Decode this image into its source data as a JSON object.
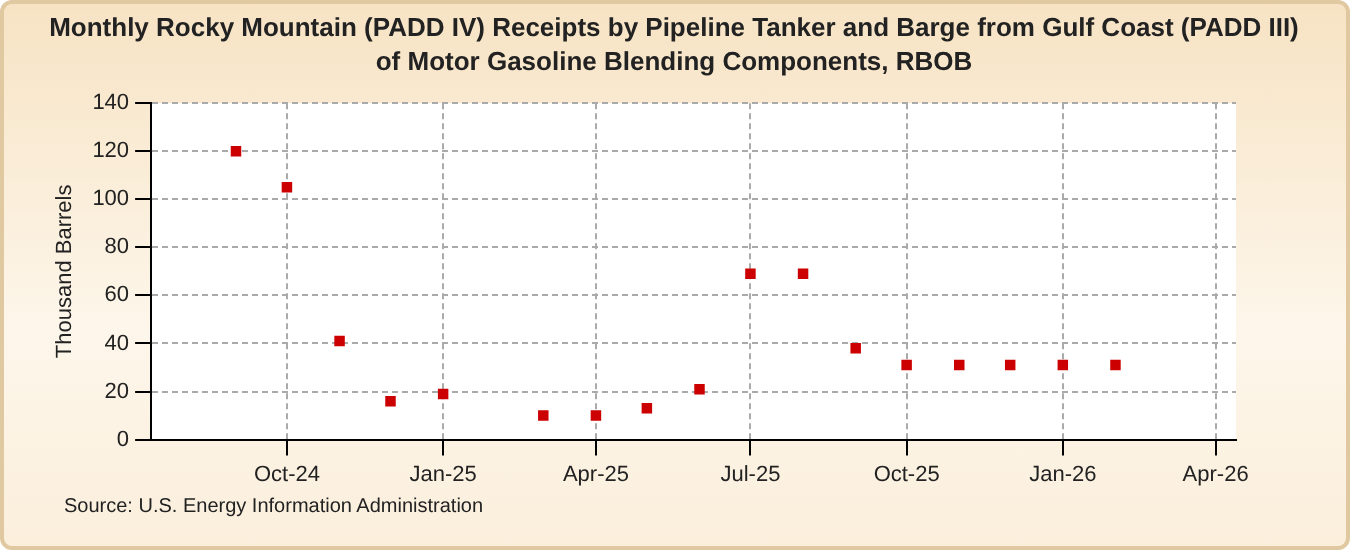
{
  "chart_data": {
    "type": "scatter",
    "title": "Monthly Rocky Mountain (PADD IV) Receipts by Pipeline Tanker and Barge from  Gulf Coast (PADD III) of Motor Gasoline Blending Components, RBOB",
    "ylabel": "Thousand Barrels",
    "x": [
      "2024-09",
      "2024-10",
      "2024-11",
      "2024-12",
      "2025-01",
      "2025-03",
      "2025-04",
      "2025-05",
      "2025-06",
      "2025-07",
      "2025-08",
      "2025-09",
      "2025-10",
      "2025-11",
      "2025-12",
      "2026-01",
      "2026-02"
    ],
    "series": [
      {
        "color": "#cc0000",
        "values": [
          120,
          105,
          41,
          16,
          19,
          10,
          10,
          13,
          21,
          69,
          69,
          38,
          31,
          31,
          31,
          31,
          31
        ]
      }
    ],
    "xlim": [
      "2024-07-13",
      "2026-04-13"
    ],
    "xticks": [
      {
        "value": "2024-10",
        "label": "Oct-24"
      },
      {
        "value": "2025-01",
        "label": "Jan-25"
      },
      {
        "value": "2025-04",
        "label": "Apr-25"
      },
      {
        "value": "2025-07",
        "label": "Jul-25"
      },
      {
        "value": "2025-10",
        "label": "Oct-25"
      },
      {
        "value": "2026-01",
        "label": "Jan-26"
      },
      {
        "value": "2026-04",
        "label": "Apr-26"
      }
    ],
    "ylim": [
      0,
      140
    ],
    "yticks": [
      0,
      20,
      40,
      60,
      80,
      100,
      120,
      140
    ],
    "grid": true,
    "marker": "square",
    "legend": false,
    "annotations": [
      "Source: U.S. Energy Information Administration"
    ]
  }
}
